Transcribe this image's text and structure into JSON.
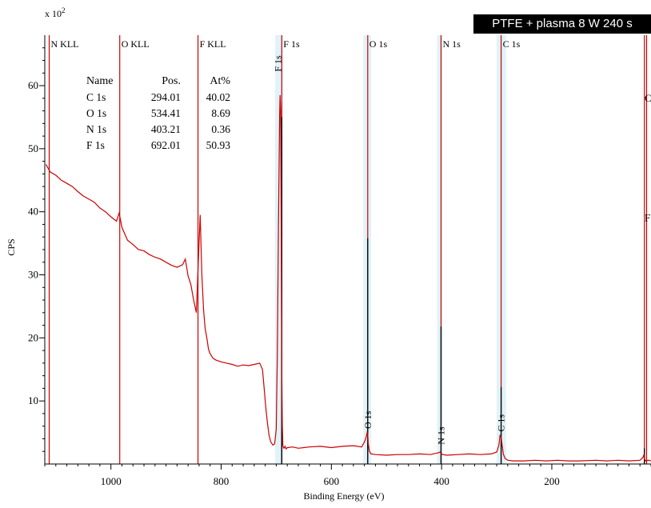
{
  "title": "PTFE + plasma 8 W 240 s",
  "axis_multiplier": {
    "base": "x 10",
    "power": "2"
  },
  "chart_data": {
    "type": "line",
    "xlabel": "Binding Energy (eV)",
    "ylabel": "CPS",
    "xlim": [
      1120,
      20
    ],
    "ylim": [
      0,
      68
    ],
    "x_reversed": true,
    "grid": false,
    "xticks": [
      1000,
      800,
      600,
      400,
      200
    ],
    "yticks": [
      10,
      20,
      30,
      40,
      50,
      60
    ],
    "series": [
      {
        "color": "#cc0000",
        "x": [
          1118,
          1110,
          1100,
          1090,
          1080,
          1070,
          1060,
          1050,
          1040,
          1030,
          1020,
          1010,
          1000,
          990,
          985,
          980,
          970,
          960,
          950,
          940,
          930,
          920,
          910,
          900,
          890,
          880,
          870,
          865,
          860,
          855,
          850,
          845,
          842,
          838,
          835,
          832,
          829,
          826,
          823,
          820,
          815,
          810,
          800,
          790,
          780,
          770,
          760,
          750,
          740,
          730,
          725,
          722,
          719,
          716,
          713,
          710,
          706,
          703,
          700,
          698,
          696,
          694,
          693,
          692,
          691,
          690,
          689,
          688,
          687,
          686,
          684,
          682,
          680,
          670,
          660,
          640,
          620,
          600,
          580,
          560,
          545,
          540,
          537,
          535,
          534,
          533,
          531,
          528,
          520,
          500,
          480,
          460,
          440,
          420,
          410,
          405,
          403,
          401,
          398,
          390,
          370,
          350,
          330,
          310,
          300,
          296,
          294,
          292,
          290,
          288,
          285,
          280,
          270,
          250,
          230,
          210,
          190,
          170,
          150,
          120,
          100,
          80,
          60,
          40,
          35,
          33,
          32,
          30,
          25,
          20
        ],
        "y": [
          47.5,
          46.3,
          45.8,
          45.0,
          44.5,
          44.0,
          43.2,
          42.5,
          42.0,
          41.5,
          40.6,
          40.0,
          39.2,
          38.5,
          39.8,
          37.5,
          35.5,
          34.8,
          34.0,
          33.8,
          33.2,
          32.8,
          32.5,
          32.0,
          31.5,
          31.2,
          31.6,
          32.5,
          29.8,
          28.5,
          26.0,
          24.0,
          31.0,
          39.5,
          30.0,
          24.5,
          21.5,
          20.0,
          18.2,
          17.5,
          16.8,
          16.5,
          16.2,
          16.0,
          15.8,
          15.5,
          15.7,
          15.6,
          15.8,
          16.0,
          15.0,
          12.0,
          9.0,
          6.5,
          4.5,
          3.5,
          3.0,
          3.2,
          5.5,
          18.0,
          38.0,
          55.0,
          58.5,
          56.0,
          38.0,
          15.0,
          6.0,
          3.0,
          2.6,
          2.5,
          2.8,
          2.4,
          2.6,
          2.7,
          2.5,
          2.7,
          2.8,
          2.6,
          2.8,
          2.9,
          2.7,
          3.5,
          4.2,
          5.0,
          4.8,
          3.2,
          2.0,
          1.6,
          1.5,
          1.4,
          1.5,
          1.5,
          1.6,
          1.5,
          1.7,
          1.8,
          1.9,
          1.7,
          1.5,
          1.4,
          1.5,
          1.6,
          1.5,
          1.6,
          1.9,
          3.0,
          4.5,
          4.2,
          3.0,
          1.6,
          0.9,
          0.6,
          0.5,
          0.5,
          0.6,
          0.5,
          0.6,
          0.5,
          0.5,
          0.6,
          0.5,
          0.6,
          0.5,
          0.6,
          1.0,
          1.4,
          0.9,
          0.5,
          0.6,
          0.5
        ]
      }
    ],
    "survey_peaks": [
      {
        "position": 690,
        "intensity": 55.0
      },
      {
        "position": 534,
        "intensity": 35.8
      },
      {
        "position": 401,
        "intensity": 21.8
      },
      {
        "position": 292,
        "intensity": 12.2
      },
      {
        "position": 32,
        "intensity": 2.5
      }
    ],
    "region_bands": [
      {
        "from": 702,
        "to": 688
      },
      {
        "from": 542,
        "to": 528
      },
      {
        "from": 408,
        "to": 398
      },
      {
        "from": 300,
        "to": 283
      }
    ],
    "markers": [
      {
        "label": "N KLL",
        "position": 1112,
        "color": "#cc0000"
      },
      {
        "label": "O KLL",
        "position": 984,
        "color": "#cc0000"
      },
      {
        "label": "F KLL",
        "position": 842,
        "color": "#cc0000"
      },
      {
        "label": "F 1s",
        "position": 690,
        "color": "#cc0000"
      },
      {
        "label": "O 1s",
        "position": 534,
        "color": "#cc0000"
      },
      {
        "label": "N 1s",
        "position": 401,
        "color": "#cc0000"
      },
      {
        "label": "C 1s",
        "position": 292,
        "color": "#cc0000"
      },
      {
        "label": "",
        "position": 32,
        "color": "#cc0000"
      },
      {
        "label": "",
        "position": 28,
        "color": "#cc0000"
      }
    ],
    "peak_annotations": [
      {
        "label": "F 1s",
        "position": 697,
        "y": 63.5
      },
      {
        "label": "O 1s",
        "position": 534,
        "y": 7.0
      },
      {
        "label": "N 1s",
        "position": 401,
        "y": 4.5
      },
      {
        "label": "C 1s",
        "position": 292,
        "y": 6.5
      }
    ],
    "right_edge_labels": [
      {
        "label": "C",
        "y": 57.5
      },
      {
        "label": "F",
        "y": 38.5
      }
    ]
  },
  "quantification": {
    "headers": [
      "Name",
      "Pos.",
      "At%"
    ],
    "rows": [
      [
        "C 1s",
        "294.01",
        "40.02"
      ],
      [
        "O 1s",
        "534.41",
        "8.69"
      ],
      [
        "N 1s",
        "403.21",
        "0.36"
      ],
      [
        "F 1s",
        "692.01",
        "50.93"
      ]
    ]
  }
}
